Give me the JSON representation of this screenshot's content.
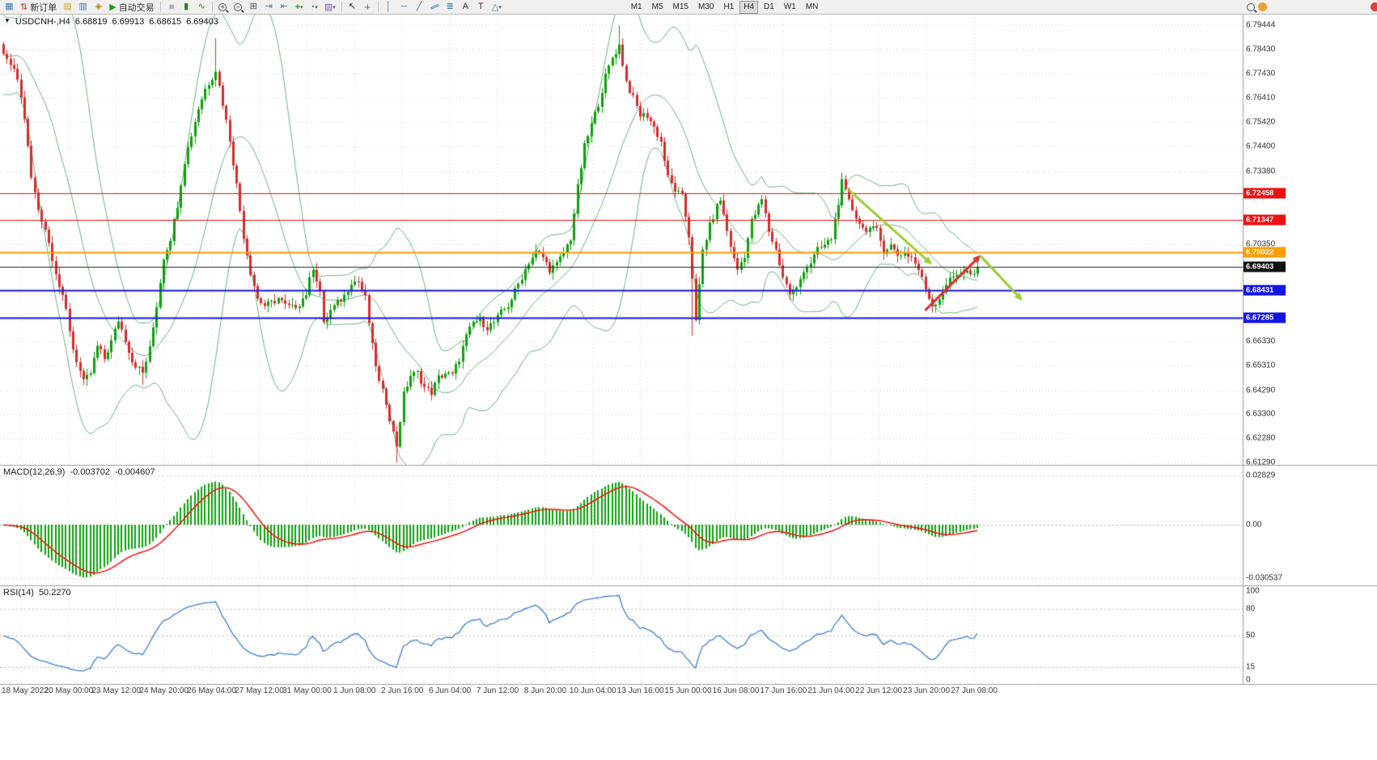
{
  "toolbar": {
    "new_order_label": "新订单",
    "autotrading_label": "自动交易",
    "timeframes": [
      {
        "label": "M1",
        "active": false
      },
      {
        "label": "M5",
        "active": false
      },
      {
        "label": "M15",
        "active": false
      },
      {
        "label": "M30",
        "active": false
      },
      {
        "label": "H1",
        "active": false
      },
      {
        "label": "H4",
        "active": true
      },
      {
        "label": "D1",
        "active": false
      },
      {
        "label": "W1",
        "active": false
      },
      {
        "label": "MN",
        "active": false
      }
    ],
    "icon_glyphs": {
      "chart_menu": "▼",
      "new_chart": "▦",
      "new_order": "⇅",
      "market_watch": "▤",
      "data_window": "▥",
      "navigator": "◈",
      "autotrading_play": "▶",
      "bars": "≡",
      "candles": "▮",
      "line_chart": "∿",
      "zoom_plus": "+",
      "zoom_minus": "−",
      "tile_windows": "⊞",
      "auto_scroll": "⇥",
      "chart_shift": "⇤",
      "indicators_plus": "+",
      "periods_clock": "◔",
      "templates": "▨",
      "cursor": "↖",
      "crosshair": "+",
      "vertical_line": "│",
      "horizontal_line": "─",
      "trendline": "╱",
      "channel": "∥",
      "fibonacci": "≣",
      "text": "A",
      "text_label": "T",
      "shapes": "△",
      "caret": "▾"
    }
  },
  "chart": {
    "symbol_label": "USDCNH-,H4",
    "ohlc": {
      "open": "6.68819",
      "high": "6.69913",
      "low": "6.68615",
      "close": "6.69403"
    }
  },
  "indicators": {
    "macd": {
      "label": "MACD(12,26,9)",
      "value_main": "-0.003702",
      "value_signal": "-0.004607",
      "scale_labels": [
        "0.02829",
        "0.00",
        "-0.030537"
      ],
      "params": {
        "fast": 12,
        "slow": 26,
        "signal": 9
      }
    },
    "rsi": {
      "label": "RSI(14)",
      "value": "50.2270",
      "levels": [
        100,
        80,
        50,
        15,
        0
      ],
      "period": 14
    }
  },
  "chart_data": {
    "type": "candlestick",
    "symbol": "USDCNH",
    "timeframe": "H4",
    "last_close": 6.69403,
    "current_price": 6.69403,
    "price_axis_ticks": [
      6.79444,
      6.7843,
      6.7743,
      6.7641,
      6.7542,
      6.744,
      6.7338,
      6.7035,
      6.6633,
      6.6531,
      6.6429,
      6.633,
      6.6228,
      6.6129
    ],
    "level_lines": [
      {
        "price": 6.72458,
        "color": "#ee1111",
        "width": 1
      },
      {
        "price": 6.71347,
        "color": "#ee1111",
        "width": 1
      },
      {
        "price": 6.70022,
        "color": "#ff9c00",
        "width": 2
      },
      {
        "price": 6.68431,
        "color": "#1414e6",
        "width": 2
      },
      {
        "price": 6.67285,
        "color": "#1414e6",
        "width": 2
      }
    ],
    "time_ticks": [
      "18 May 2022",
      "20 May 00:00",
      "23 May 12:00",
      "24 May 20:00",
      "26 May 04:00",
      "27 May 12:00",
      "31 May 00:00",
      "1 Jun 08:00",
      "2 Jun 16:00",
      "6 Jun 04:00",
      "7 Jun 12:00",
      "8 Jun 20:00",
      "10 Jun 04:00",
      "13 Jun 16:00",
      "15 Jun 00:00",
      "16 Jun 08:00",
      "17 Jun 16:00",
      "21 Jun 04:00",
      "22 Jun 12:00",
      "23 Jun 20:00",
      "27 Jun 08:00"
    ],
    "price_anchors": [
      [
        0,
        6.781
      ],
      [
        2,
        6.778
      ],
      [
        4,
        6.772
      ],
      [
        6,
        6.756
      ],
      [
        8,
        6.731
      ],
      [
        10,
        6.718
      ],
      [
        12,
        6.71
      ],
      [
        14,
        6.698
      ],
      [
        16,
        6.686
      ],
      [
        18,
        6.676
      ],
      [
        20,
        6.66
      ],
      [
        23,
        6.646
      ],
      [
        25,
        6.65
      ],
      [
        27,
        6.661
      ],
      [
        29,
        6.656
      ],
      [
        31,
        6.663
      ],
      [
        33,
        6.672
      ],
      [
        35,
        6.664
      ],
      [
        37,
        6.655
      ],
      [
        40,
        6.65
      ],
      [
        42,
        6.66
      ],
      [
        44,
        6.678
      ],
      [
        46,
        6.698
      ],
      [
        48,
        6.706
      ],
      [
        50,
        6.72
      ],
      [
        52,
        6.738
      ],
      [
        54,
        6.749
      ],
      [
        56,
        6.76
      ],
      [
        58,
        6.768
      ],
      [
        60,
        6.773
      ],
      [
        61,
        6.776
      ],
      [
        63,
        6.762
      ],
      [
        65,
        6.747
      ],
      [
        67,
        6.728
      ],
      [
        69,
        6.707
      ],
      [
        71,
        6.692
      ],
      [
        73,
        6.681
      ],
      [
        75,
        6.678
      ],
      [
        77,
        6.679
      ],
      [
        79,
        6.681
      ],
      [
        81,
        6.678
      ],
      [
        83,
        6.677
      ],
      [
        85,
        6.679
      ],
      [
        87,
        6.683
      ],
      [
        89,
        6.694
      ],
      [
        91,
        6.684
      ],
      [
        92,
        6.67
      ],
      [
        94,
        6.676
      ],
      [
        96,
        6.679
      ],
      [
        98,
        6.682
      ],
      [
        100,
        6.688
      ],
      [
        102,
        6.688
      ],
      [
        104,
        6.681
      ],
      [
        106,
        6.661
      ],
      [
        108,
        6.646
      ],
      [
        110,
        6.638
      ],
      [
        112,
        6.625
      ],
      [
        113,
        6.62
      ],
      [
        115,
        6.641
      ],
      [
        117,
        6.649
      ],
      [
        119,
        6.65
      ],
      [
        121,
        6.644
      ],
      [
        123,
        6.642
      ],
      [
        125,
        6.648
      ],
      [
        127,
        6.65
      ],
      [
        129,
        6.649
      ],
      [
        131,
        6.656
      ],
      [
        133,
        6.665
      ],
      [
        135,
        6.671
      ],
      [
        137,
        6.672
      ],
      [
        139,
        6.669
      ],
      [
        141,
        6.671
      ],
      [
        143,
        6.675
      ],
      [
        145,
        6.678
      ],
      [
        147,
        6.684
      ],
      [
        149,
        6.69
      ],
      [
        151,
        6.696
      ],
      [
        153,
        6.7
      ],
      [
        155,
        6.698
      ],
      [
        157,
        6.693
      ],
      [
        159,
        6.695
      ],
      [
        161,
        6.7
      ],
      [
        163,
        6.706
      ],
      [
        165,
        6.727
      ],
      [
        167,
        6.744
      ],
      [
        169,
        6.753
      ],
      [
        171,
        6.762
      ],
      [
        173,
        6.773
      ],
      [
        175,
        6.781
      ],
      [
        177,
        6.786
      ],
      [
        179,
        6.771
      ],
      [
        181,
        6.764
      ],
      [
        183,
        6.757
      ],
      [
        185,
        6.757
      ],
      [
        187,
        6.752
      ],
      [
        189,
        6.746
      ],
      [
        191,
        6.731
      ],
      [
        193,
        6.726
      ],
      [
        195,
        6.723
      ],
      [
        197,
        6.707
      ],
      [
        198,
        6.69
      ],
      [
        199,
        6.671
      ],
      [
        201,
        6.701
      ],
      [
        203,
        6.711
      ],
      [
        205,
        6.719
      ],
      [
        206,
        6.722
      ],
      [
        208,
        6.709
      ],
      [
        210,
        6.697
      ],
      [
        211,
        6.693
      ],
      [
        213,
        6.699
      ],
      [
        215,
        6.713
      ],
      [
        217,
        6.719
      ],
      [
        218,
        6.722
      ],
      [
        220,
        6.709
      ],
      [
        222,
        6.701
      ],
      [
        224,
        6.69
      ],
      [
        226,
        6.683
      ],
      [
        228,
        6.685
      ],
      [
        230,
        6.693
      ],
      [
        232,
        6.696
      ],
      [
        234,
        6.701
      ],
      [
        236,
        6.703
      ],
      [
        238,
        6.706
      ],
      [
        240,
        6.721
      ],
      [
        241,
        6.729
      ],
      [
        243,
        6.721
      ],
      [
        245,
        6.715
      ],
      [
        247,
        6.71
      ],
      [
        249,
        6.71
      ],
      [
        251,
        6.709
      ],
      [
        253,
        6.701
      ],
      [
        255,
        6.703
      ],
      [
        257,
        6.699
      ],
      [
        259,
        6.7
      ],
      [
        261,
        6.698
      ],
      [
        263,
        6.693
      ],
      [
        265,
        6.685
      ],
      [
        267,
        6.678
      ],
      [
        269,
        6.681
      ],
      [
        271,
        6.687
      ],
      [
        273,
        6.69
      ],
      [
        275,
        6.692
      ],
      [
        277,
        6.692
      ],
      [
        279,
        6.69
      ],
      [
        280,
        6.694
      ]
    ],
    "wick_spikes": [
      {
        "i": 23,
        "low": 6.645
      },
      {
        "i": 40,
        "low": 6.645
      },
      {
        "i": 61,
        "high": 6.789
      },
      {
        "i": 113,
        "low": 6.6129
      },
      {
        "i": 177,
        "high": 6.7944
      },
      {
        "i": 198,
        "low": 6.6655
      },
      {
        "i": 241,
        "high": 6.7333
      }
    ],
    "bollinger_period": 20,
    "bollinger_dev": 2,
    "arrows": [
      {
        "from_bar": 243,
        "from_price": 6.726,
        "to_bar": 267,
        "to_price": 6.695,
        "color_key": "arrow_green"
      },
      {
        "from_bar": 265,
        "from_price": 6.676,
        "to_bar": 281,
        "to_price": 6.699,
        "color_key": "arrow_red"
      },
      {
        "from_bar": 281,
        "from_price": 6.6985,
        "to_bar": 293,
        "to_price": 6.68,
        "color_key": "arrow_green"
      }
    ],
    "colors": {
      "bull": "#0aa30a",
      "bear": "#d62b2b",
      "bands": "#6fb483",
      "macd_hist": "#0aa30a",
      "macd_signal": "#ff0000",
      "rsi_line": "#3f7fd4",
      "grid": "#d9d9d9",
      "line_red": "#ee1111",
      "line_orange": "#ff9c00",
      "line_blue": "#1414e6",
      "current": "#222222",
      "arrow_green": "#9acd32",
      "arrow_red": "#e03030",
      "tag_current_bg": "#111111"
    }
  }
}
